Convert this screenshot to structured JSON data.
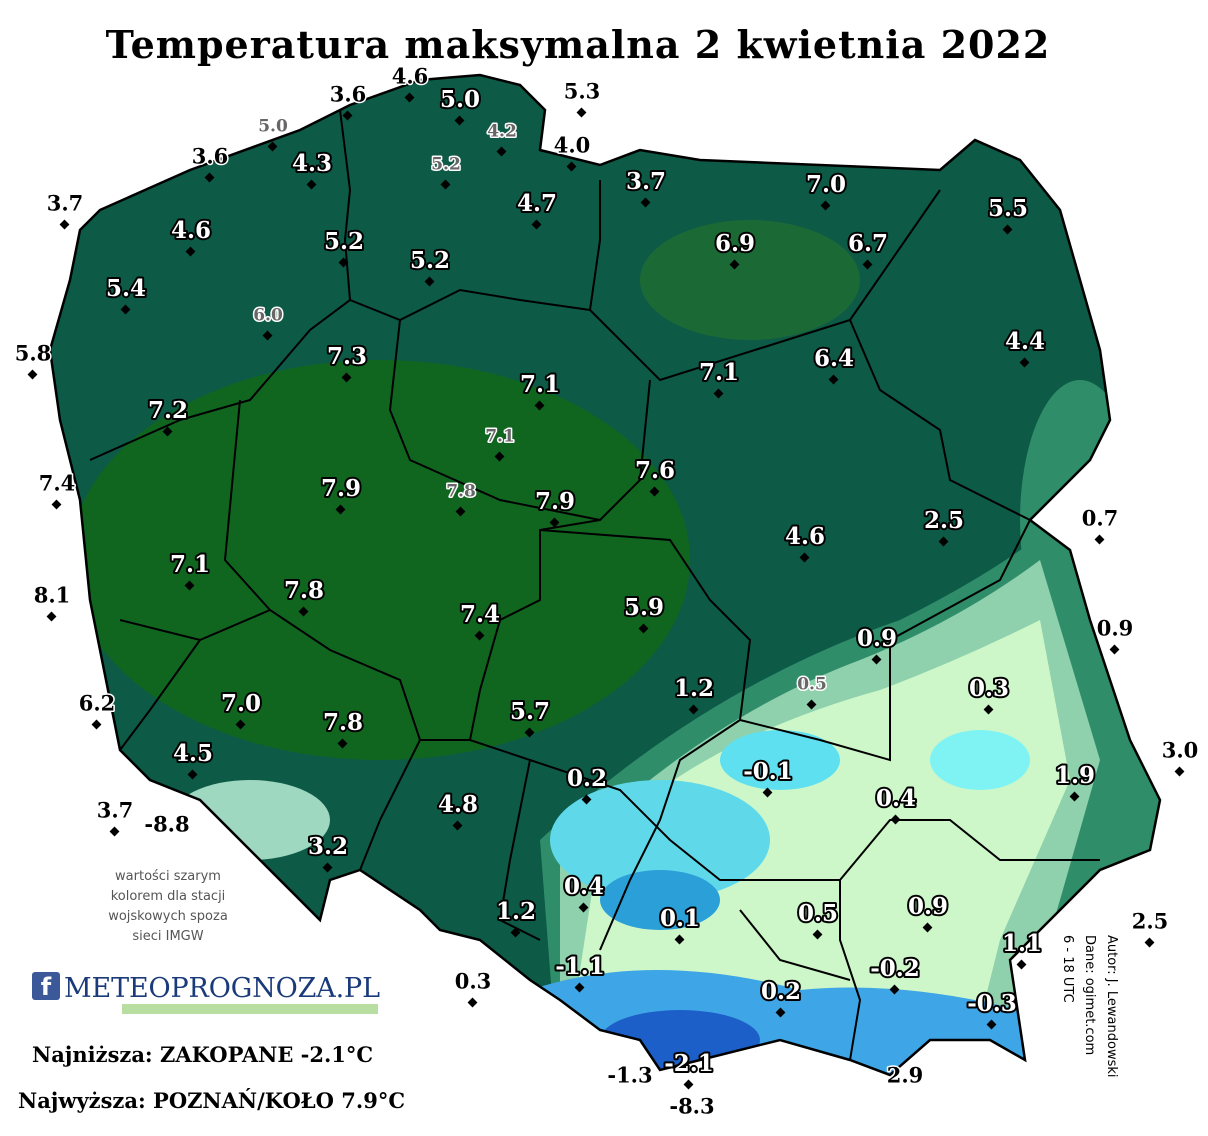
{
  "title": "Temperatura maksymalna 2 kwietnia 2022",
  "stations": {
    "network": [
      "5.0",
      "4.3",
      "3.7",
      "7.0",
      "5.5",
      "4.6",
      "5.2",
      "6.9",
      "6.7",
      "5.2",
      "5.4",
      "4.4",
      "7.3",
      "6.4",
      "7.1",
      "7.1",
      "7.2",
      "7.6",
      "7.9",
      "7.9",
      "2.5",
      "4.6",
      "7.1",
      "7.8",
      "5.9",
      "7.4",
      "0.9",
      "1.2",
      "0.3",
      "7.0",
      "7.8",
      "5.7",
      "4.5",
      "-0.1",
      "0.2",
      "1.9",
      "0.4",
      "4.8",
      "3.2",
      "0.4",
      "1.2",
      "0.1",
      "0.5",
      "0.9",
      "1.1",
      "-1.1",
      "-0.2",
      "0.2",
      "-0.3",
      "-2.1",
      "4.7"
    ],
    "military": [
      "5.0",
      "4.2",
      "5.2",
      "6.0",
      "7.1",
      "7.8",
      "0.5"
    ],
    "outside": [
      "3.6",
      "4.6",
      "5.3",
      "4.0",
      "3.6",
      "3.7",
      "5.8",
      "7.4",
      "8.1",
      "6.2",
      "3.7",
      "-8.8",
      "0.7",
      "0.9",
      "3.0",
      "2.5",
      "0.3",
      "-1.3",
      "2.9",
      "-8.3"
    ]
  },
  "note": [
    "wartości szarym",
    "kolorem dla stacji",
    "wojskowych spoza",
    "sieci IMGW"
  ],
  "logo": "METEOPROGNOZA.PL",
  "lowest": "Najniższa: ZAKOPANE -2.1°C",
  "highest": "Najwyższa: POZNAŃ/KOŁO 7.9°C",
  "credits": [
    "Autor: J. Lewandowski",
    "Dane: ogimet.com",
    "6 - 18 UTC"
  ]
}
